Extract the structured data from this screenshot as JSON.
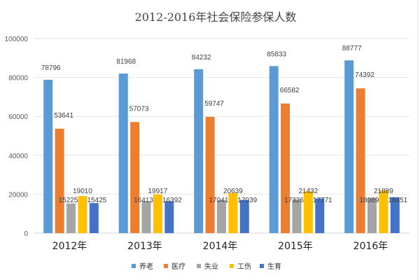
{
  "chart_data": {
    "type": "bar",
    "title": "2012-2016年社会保险参保人数",
    "categories": [
      "2012年",
      "2013年",
      "2014年",
      "2015年",
      "2016年"
    ],
    "series": [
      {
        "name": "养老",
        "color": "#5B9BD5",
        "values": [
          78796,
          81968,
          84232,
          85833,
          88777
        ]
      },
      {
        "name": "医疗",
        "color": "#ED7D31",
        "values": [
          53641,
          57073,
          59747,
          66582,
          74392
        ]
      },
      {
        "name": "失业",
        "color": "#A5A5A5",
        "values": [
          15225,
          16413,
          17041,
          17326,
          18089
        ]
      },
      {
        "name": "工伤",
        "color": "#FFC000",
        "values": [
          19010,
          19917,
          20639,
          21432,
          21889
        ]
      },
      {
        "name": "生育",
        "color": "#4472C4",
        "values": [
          15425,
          16392,
          17039,
          17771,
          18451
        ]
      }
    ],
    "yticks": [
      0,
      20000,
      40000,
      60000,
      80000,
      100000
    ],
    "ylim": [
      0,
      100000
    ],
    "grid": true,
    "legend": "bottom"
  }
}
